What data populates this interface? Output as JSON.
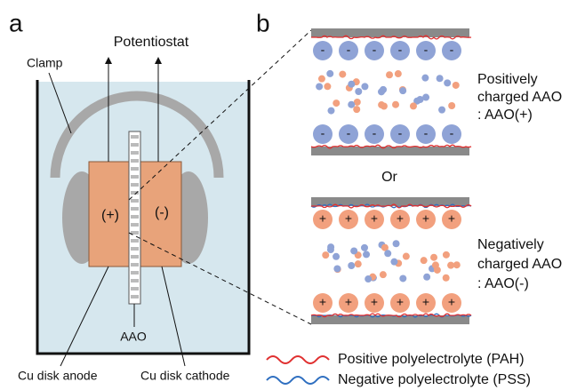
{
  "panel_a": {
    "label": "a",
    "potentiostat": "Potentiostat",
    "clamp": "Clamp",
    "anode_sign": "(+)",
    "cathode_sign": "(-)",
    "aao": "AAO",
    "anode": "Cu disk anode",
    "cathode": "Cu disk cathode"
  },
  "panel_b": {
    "label": "b",
    "positive_case": [
      "Positively",
      "charged AAO",
      ": AAO(+)"
    ],
    "or": "Or",
    "negative_case": [
      "Negatively",
      "charged AAO",
      ": AAO(-)"
    ],
    "negative_ion": "-",
    "positive_ion": "+"
  },
  "legend": [
    {
      "label": "Positive polyelectrolyte (PAH)"
    },
    {
      "label": "Negative polyelectrolyte (PSS)"
    }
  ]
}
